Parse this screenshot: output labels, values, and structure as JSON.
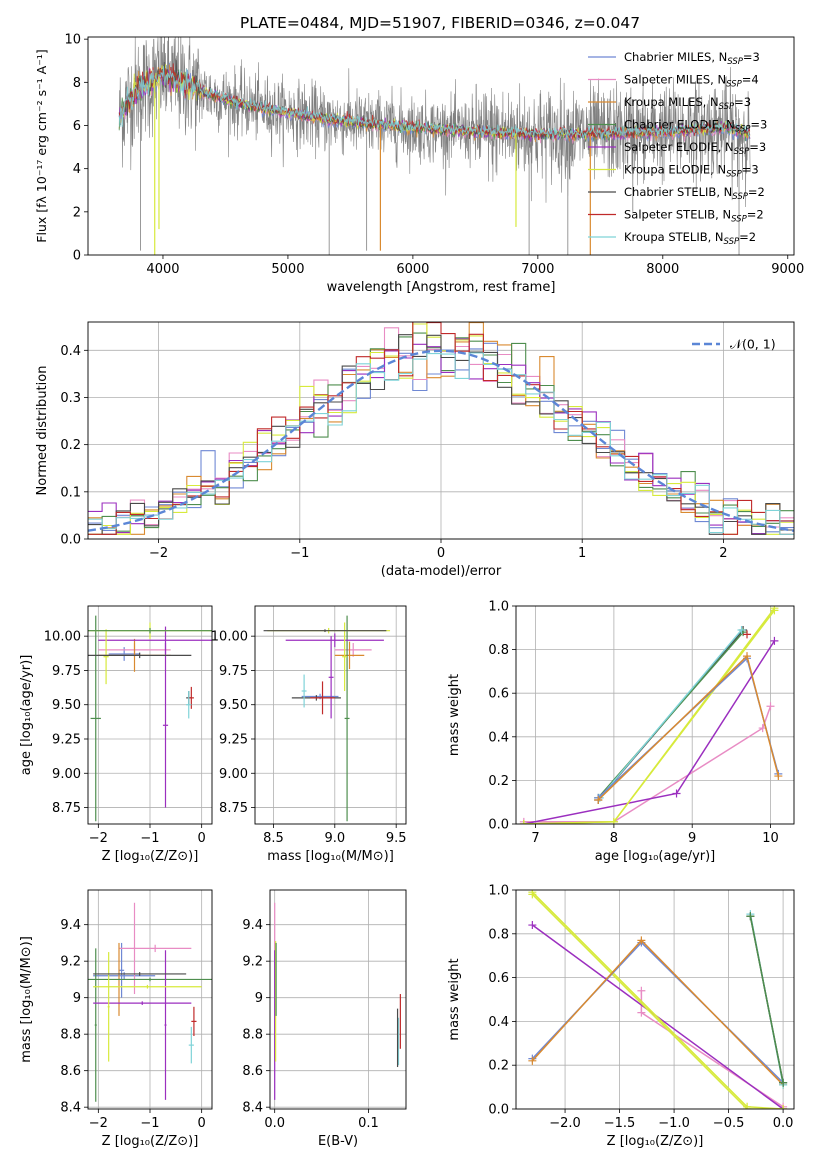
{
  "figure": {
    "title": "PLATE=0484, MJD=51907, FIBERID=0346, z=0.047"
  },
  "colors": {
    "Chabrier MILES": "#6f88d4",
    "Salpeter MILES": "#e88cc4",
    "Kroupa MILES": "#d98a30",
    "Chabrier ELODIE": "#4e8e4e",
    "Salpeter ELODIE": "#9b2fbf",
    "Kroupa ELODIE": "#d7ea3c",
    "Chabrier STELIB": "#4a4a4a",
    "Salpeter STELIB": "#c02a2a",
    "Kroupa STELIB": "#7fd3d8",
    "data": "#808080",
    "normal": "#5b86d6",
    "grid": "#b0b0b0"
  },
  "chart_data": [
    {
      "id": "spectrum",
      "type": "line",
      "xlabel": "wavelength [Angstrom, rest frame]",
      "ylabel": "Flux [fλ 10⁻¹⁷ erg cm⁻² s⁻¹ A⁻¹]",
      "xlim": [
        3400,
        9050
      ],
      "ylim": [
        0,
        10.1
      ],
      "xticks": [
        4000,
        5000,
        6000,
        7000,
        8000,
        9000
      ],
      "yticks": [
        0,
        2,
        4,
        6,
        8,
        10
      ],
      "grid": false,
      "legend_position": "top-right",
      "legend": [
        {
          "series": "Chabrier MILES",
          "label": "Chabrier MILES, N",
          "sub": "SSP",
          "eq": "=3"
        },
        {
          "series": "Salpeter MILES",
          "label": "Salpeter MILES, N",
          "sub": "SSP",
          "eq": "=4"
        },
        {
          "series": "Kroupa MILES",
          "label": "Kroupa MILES, N",
          "sub": "SSP",
          "eq": "=3"
        },
        {
          "series": "Chabrier ELODIE",
          "label": "Chabrier ELODIE, N",
          "sub": "SSP",
          "eq": "=3"
        },
        {
          "series": "Salpeter ELODIE",
          "label": "Salpeter ELODIE, N",
          "sub": "SSP",
          "eq": "=3"
        },
        {
          "series": "Kroupa ELODIE",
          "label": "Kroupa ELODIE, N",
          "sub": "SSP",
          "eq": "=3"
        },
        {
          "series": "Chabrier STELIB",
          "label": "Chabrier STELIB, N",
          "sub": "SSP",
          "eq": "=2"
        },
        {
          "series": "Salpeter STELIB",
          "label": "Salpeter STELIB, N",
          "sub": "SSP",
          "eq": "=2"
        },
        {
          "series": "Kroupa STELIB",
          "label": "Kroupa STELIB, N",
          "sub": "SSP",
          "eq": "=2"
        }
      ],
      "model_continuum": {
        "x": [
          3650,
          3700,
          3800,
          3900,
          4000,
          4100,
          4200,
          4300,
          4400,
          4500,
          4700,
          5000,
          5300,
          5600,
          6000,
          6500,
          7000,
          7500,
          8000,
          8500,
          8700
        ],
        "y": [
          6.4,
          6.9,
          7.7,
          8.0,
          8.4,
          8.1,
          7.9,
          7.6,
          7.4,
          7.2,
          6.9,
          6.6,
          6.3,
          6.1,
          5.9,
          5.7,
          5.6,
          5.6,
          5.7,
          5.9,
          5.6
        ]
      },
      "data_noise_scale": 1.2,
      "absorption_dips": [
        {
          "x": 3934,
          "y": 0.0,
          "series": "Kroupa ELODIE"
        },
        {
          "x": 3968,
          "y": 1.2,
          "series": "Kroupa ELODIE"
        },
        {
          "x": 5740,
          "y": 0.2,
          "series": "Kroupa MILES"
        },
        {
          "x": 6825,
          "y": 1.3,
          "series": "Kroupa ELODIE"
        },
        {
          "x": 7420,
          "y": 0.0,
          "series": "Kroupa MILES"
        }
      ],
      "data_spikes": [
        {
          "x": 3820,
          "y": 0.2
        },
        {
          "x": 5330,
          "y": 0.0
        },
        {
          "x": 5630,
          "y": 0.2
        },
        {
          "x": 6930,
          "y": 0.0
        },
        {
          "x": 7240,
          "y": 0.0
        },
        {
          "x": 7760,
          "y": 2.0
        },
        {
          "x": 8610,
          "y": 0.0
        }
      ]
    },
    {
      "id": "residuals",
      "type": "histogram",
      "xlabel": "(data-model)/error",
      "ylabel": "Normed distribution",
      "xlim": [
        -2.5,
        2.5
      ],
      "ylim": [
        0,
        0.46
      ],
      "xticks": [
        -2,
        -1,
        0,
        1,
        2
      ],
      "xticklabels": [
        "−2",
        "−1",
        "0",
        "1",
        "2"
      ],
      "yticks": [
        0.0,
        0.1,
        0.2,
        0.3,
        0.4
      ],
      "grid": true,
      "legend_position": "top-right",
      "legend": [
        {
          "series": "normal",
          "label": "𝒩(0, 1)"
        }
      ],
      "bin_width": 0.1,
      "noise_amplitude": 0.035
    },
    {
      "id": "age_vs_Z",
      "type": "errorbar",
      "xlabel": "Z [log₁₀(Z/Z⊙)]",
      "ylabel": "age  [log₁₀(age/yr)]",
      "xlim": [
        -2.2,
        0.2
      ],
      "ylim": [
        8.63,
        10.22
      ],
      "xticks": [
        -2,
        -1,
        0
      ],
      "xticklabels": [
        "−2",
        "−1",
        "0"
      ],
      "yticks": [
        8.75,
        9.0,
        9.25,
        9.5,
        9.75,
        10.0
      ],
      "yticklabels": [
        "8.75",
        "9.00",
        "9.25",
        "9.50",
        "9.75",
        "10.00"
      ],
      "grid": true,
      "points": [
        {
          "series": "Chabrier MILES",
          "x": -1.5,
          "xerr": 0.3,
          "y": 9.87,
          "yerr": 0.05
        },
        {
          "series": "Salpeter MILES",
          "x": -1.3,
          "xerr": 0.7,
          "y": 9.9,
          "yerr": 0.05
        },
        {
          "series": "Kroupa MILES",
          "x": -1.3,
          "xerr": 0.7,
          "y": 9.86,
          "yerr": 0.12
        },
        {
          "series": "Chabrier ELODIE",
          "x": -2.05,
          "xerr": 0.1,
          "y": 9.4,
          "yerr": 0.75
        },
        {
          "series": "Salpeter ELODIE",
          "x": -0.7,
          "xerr": 1.3,
          "y": 9.97,
          "yerr": 0.1
        },
        {
          "series": "Salpeter ELODIE",
          "x": -0.7,
          "xerr": 0.05,
          "y": 9.35,
          "yerr": 0.6
        },
        {
          "series": "Kroupa ELODIE",
          "x": -1.0,
          "xerr": 1.2,
          "y": 10.04,
          "yerr": 0.06
        },
        {
          "series": "Kroupa ELODIE",
          "x": -1.85,
          "xerr": 0.05,
          "y": 9.85,
          "yerr": 0.2
        },
        {
          "series": "Chabrier STELIB",
          "x": -1.2,
          "xerr": 1.0,
          "y": 9.86,
          "yerr": 0.02
        },
        {
          "series": "Chabrier STELIB",
          "x": -0.25,
          "xerr": 0.05,
          "y": 9.55,
          "yerr": 0.05
        },
        {
          "series": "Salpeter STELIB",
          "x": -0.2,
          "xerr": 0.05,
          "y": 9.55,
          "yerr": 0.08
        },
        {
          "series": "Kroupa STELIB",
          "x": -0.25,
          "xerr": 0.05,
          "y": 9.5,
          "yerr": 0.1
        },
        {
          "series": "Chabrier ELODIE",
          "x": -1.0,
          "xerr": 1.2,
          "y": 10.04,
          "yerr": 0.02
        }
      ]
    },
    {
      "id": "age_vs_mass",
      "type": "errorbar",
      "xlabel": "mass [log₁₀(M/M⊙)]",
      "ylabel": "",
      "xlim": [
        8.35,
        9.58
      ],
      "ylim": [
        8.63,
        10.22
      ],
      "xticks": [
        8.5,
        9.0,
        9.5
      ],
      "xticklabels": [
        "8.5",
        "9.0",
        "9.5"
      ],
      "yticks": [
        8.75,
        9.0,
        9.25,
        9.5,
        9.75,
        10.0
      ],
      "yticklabels": [
        "8.75",
        "9.00",
        "9.25",
        "9.50",
        "9.75",
        "10.00"
      ],
      "grid": true,
      "points": [
        {
          "series": "Chabrier MILES",
          "x": 8.88,
          "xerr": 0.15,
          "y": 9.56,
          "yerr": 0.02
        },
        {
          "series": "Salpeter MILES",
          "x": 9.15,
          "xerr": 0.15,
          "y": 9.9,
          "yerr": 0.05
        },
        {
          "series": "Kroupa MILES",
          "x": 9.12,
          "xerr": 0.12,
          "y": 9.86,
          "yerr": 0.1
        },
        {
          "series": "Chabrier ELODIE",
          "x": 9.1,
          "xerr": 0.02,
          "y": 9.4,
          "yerr": 0.75
        },
        {
          "series": "Salpeter ELODIE",
          "x": 9.0,
          "xerr": 0.4,
          "y": 9.97,
          "yerr": 0.05
        },
        {
          "series": "Salpeter ELODIE",
          "x": 8.97,
          "xerr": 0.02,
          "y": 9.7,
          "yerr": 0.3
        },
        {
          "series": "Kroupa ELODIE",
          "x": 8.95,
          "xerr": 0.5,
          "y": 10.04,
          "yerr": 0.02
        },
        {
          "series": "Kroupa ELODIE",
          "x": 9.08,
          "xerr": 0.02,
          "y": 9.85,
          "yerr": 0.25
        },
        {
          "series": "Chabrier STELIB",
          "x": 8.85,
          "xerr": 0.2,
          "y": 9.55,
          "yerr": 0.02
        },
        {
          "series": "Salpeter STELIB",
          "x": 8.9,
          "xerr": 0.1,
          "y": 9.55,
          "yerr": 0.12
        },
        {
          "series": "Kroupa STELIB",
          "x": 8.75,
          "xerr": 0.02,
          "y": 9.6,
          "yerr": 0.12
        },
        {
          "series": "Chabrier STELIB",
          "x": 8.92,
          "xerr": 0.5,
          "y": 10.04,
          "yerr": 0.01
        }
      ]
    },
    {
      "id": "weight_vs_age",
      "type": "line",
      "xlabel": "age  [log₁₀(age/yr)]",
      "ylabel": "mass weight",
      "xlim": [
        6.75,
        10.3
      ],
      "ylim": [
        0.0,
        1.0
      ],
      "xticks": [
        7,
        8,
        9,
        10
      ],
      "yticks": [
        0.0,
        0.2,
        0.4,
        0.6,
        0.8,
        1.0
      ],
      "yticklabels": [
        "0.0",
        "0.2",
        "0.4",
        "0.6",
        "0.8",
        "1.0"
      ],
      "grid": true,
      "series": [
        {
          "name": "Salpeter MILES",
          "x": [
            6.85,
            8.0,
            9.9,
            10.0
          ],
          "y": [
            0.01,
            0.01,
            0.44,
            0.54
          ]
        },
        {
          "name": "Salpeter ELODIE",
          "x": [
            6.85,
            8.8,
            10.05
          ],
          "y": [
            0.0,
            0.14,
            0.84
          ]
        },
        {
          "name": "Kroupa ELODIE",
          "x": [
            6.85,
            8.0,
            10.05
          ],
          "y": [
            0.0,
            0.01,
            0.99
          ]
        },
        {
          "name": "Kroupa ELODIE",
          "x": [
            6.85,
            8.0,
            10.05
          ],
          "y": [
            0.0,
            0.01,
            0.98
          ]
        },
        {
          "name": "Chabrier STELIB",
          "x": [
            7.8,
            9.65
          ],
          "y": [
            0.11,
            0.89
          ]
        },
        {
          "name": "Chabrier ELODIE",
          "x": [
            7.8,
            9.65
          ],
          "y": [
            0.12,
            0.88
          ]
        },
        {
          "name": "Kroupa STELIB",
          "x": [
            7.82,
            9.63
          ],
          "y": [
            0.12,
            0.89
          ]
        },
        {
          "name": "Chabrier MILES",
          "x": [
            7.8,
            9.7,
            10.1
          ],
          "y": [
            0.12,
            0.76,
            0.23
          ]
        },
        {
          "name": "Kroupa MILES",
          "x": [
            7.8,
            9.7,
            10.1
          ],
          "y": [
            0.11,
            0.77,
            0.22
          ]
        },
        {
          "name": "Salpeter STELIB",
          "x": [
            9.7
          ],
          "y": [
            0.87
          ]
        }
      ]
    },
    {
      "id": "mass_vs_Z",
      "type": "errorbar",
      "xlabel": "Z [log₁₀(Z/Z⊙)]",
      "ylabel": "mass [log₁₀(M/M⊙)]",
      "xlim": [
        -2.2,
        0.2
      ],
      "ylim": [
        8.39,
        9.59
      ],
      "xticks": [
        -2,
        -1,
        0
      ],
      "xticklabels": [
        "−2",
        "−1",
        "0"
      ],
      "yticks": [
        8.4,
        8.6,
        8.8,
        9.0,
        9.2,
        9.4
      ],
      "grid": true,
      "points": [
        {
          "series": "Chabrier MILES",
          "x": -1.5,
          "xerr": 0.6,
          "y": 9.12,
          "yerr": 0.02
        },
        {
          "series": "Chabrier MILES",
          "x": -1.55,
          "xerr": 0.05,
          "y": 9.15,
          "yerr": 0.15
        },
        {
          "series": "Salpeter MILES",
          "x": -0.9,
          "xerr": 0.7,
          "y": 9.27,
          "yerr": 0.02
        },
        {
          "series": "Salpeter MILES",
          "x": -1.3,
          "xerr": 0.02,
          "y": 9.27,
          "yerr": 0.25
        },
        {
          "series": "Kroupa MILES",
          "x": -1.6,
          "xerr": 0.02,
          "y": 9.1,
          "yerr": 0.2
        },
        {
          "series": "Chabrier ELODIE",
          "x": -1.0,
          "xerr": 1.2,
          "y": 9.1,
          "yerr": 0.01
        },
        {
          "series": "Chabrier ELODIE",
          "x": -2.05,
          "xerr": 0.02,
          "y": 8.85,
          "yerr": 0.42
        },
        {
          "series": "Salpeter ELODIE",
          "x": -1.15,
          "xerr": 0.95,
          "y": 8.97,
          "yerr": 0.01
        },
        {
          "series": "Salpeter ELODIE",
          "x": -0.7,
          "xerr": 0.02,
          "y": 8.85,
          "yerr": 0.41
        },
        {
          "series": "Kroupa ELODIE",
          "x": -1.05,
          "xerr": 1.05,
          "y": 9.06,
          "yerr": 0.01
        },
        {
          "series": "Kroupa ELODIE",
          "x": -1.8,
          "xerr": 0.02,
          "y": 8.95,
          "yerr": 0.3
        },
        {
          "series": "Chabrier STELIB",
          "x": -1.2,
          "xerr": 0.9,
          "y": 9.13,
          "yerr": 0.01
        },
        {
          "series": "Salpeter STELIB",
          "x": -0.15,
          "xerr": 0.05,
          "y": 8.87,
          "yerr": 0.08
        },
        {
          "series": "Kroupa STELIB",
          "x": -0.2,
          "xerr": 0.05,
          "y": 8.74,
          "yerr": 0.1
        }
      ]
    },
    {
      "id": "mass_vs_EBV",
      "type": "errorbar",
      "xlabel": "E(B-V)",
      "ylabel": "",
      "xlim": [
        -0.005,
        0.14
      ],
      "ylim": [
        8.39,
        9.59
      ],
      "xticks": [
        0.0,
        0.1
      ],
      "xticklabels": [
        "0.0",
        "0.1"
      ],
      "yticks": [
        8.4,
        8.6,
        8.8,
        9.0,
        9.2,
        9.4
      ],
      "grid": true,
      "points": [
        {
          "series": "Salpeter MILES",
          "x": 0.0,
          "xerr": 0.0,
          "y": 9.27,
          "yerr": 0.25
        },
        {
          "series": "Salpeter ELODIE",
          "x": 0.0,
          "xerr": 0.0,
          "y": 8.85,
          "yerr": 0.41
        },
        {
          "series": "Kroupa ELODIE",
          "x": 0.001,
          "xerr": 0.0,
          "y": 8.98,
          "yerr": 0.33
        },
        {
          "series": "Chabrier ELODIE",
          "x": 0.0015,
          "xerr": 0.0,
          "y": 9.1,
          "yerr": 0.2
        },
        {
          "series": "Salpeter STELIB",
          "x": 0.134,
          "xerr": 0.0,
          "y": 8.87,
          "yerr": 0.15
        },
        {
          "series": "Kroupa STELIB",
          "x": 0.132,
          "xerr": 0.0,
          "y": 8.76,
          "yerr": 0.13
        },
        {
          "series": "Chabrier STELIB",
          "x": 0.131,
          "xerr": 0.0,
          "y": 8.78,
          "yerr": 0.16
        }
      ]
    },
    {
      "id": "weight_vs_Z",
      "type": "line",
      "xlabel": "Z [log₁₀(Z/Z⊙)]",
      "ylabel": "mass weight",
      "xlim": [
        -2.45,
        0.1
      ],
      "ylim": [
        0.0,
        1.0
      ],
      "xticks": [
        -2.0,
        -1.5,
        -1.0,
        -0.5,
        0.0
      ],
      "xticklabels": [
        "−2.0",
        "−1.5",
        "−1.0",
        "−0.5",
        "0.0"
      ],
      "yticks": [
        0.0,
        0.2,
        0.4,
        0.6,
        0.8,
        1.0
      ],
      "yticklabels": [
        "0.0",
        "0.2",
        "0.4",
        "0.6",
        "0.8",
        "1.0"
      ],
      "grid": true,
      "series": [
        {
          "name": "Salpeter MILES",
          "x": [
            -1.3,
            -1.3,
            0.0
          ],
          "y": [
            0.54,
            0.44,
            0.01
          ]
        },
        {
          "name": "Salpeter ELODIE",
          "x": [
            -2.3,
            0.0
          ],
          "y": [
            0.84,
            0.0
          ]
        },
        {
          "name": "Kroupa ELODIE",
          "x": [
            -2.3,
            -0.33,
            0.0
          ],
          "y": [
            0.99,
            0.01,
            0.0
          ]
        },
        {
          "name": "Kroupa ELODIE",
          "x": [
            -2.3,
            -0.33,
            0.0
          ],
          "y": [
            0.98,
            0.0,
            0.0
          ]
        },
        {
          "name": "Chabrier MILES",
          "x": [
            -2.3,
            -1.3,
            0.0
          ],
          "y": [
            0.23,
            0.76,
            0.12
          ]
        },
        {
          "name": "Kroupa MILES",
          "x": [
            -2.3,
            -1.3,
            0.0
          ],
          "y": [
            0.22,
            0.77,
            0.11
          ]
        },
        {
          "name": "Kroupa STELIB",
          "x": [
            -0.3,
            0.0
          ],
          "y": [
            0.89,
            0.11
          ]
        },
        {
          "name": "Chabrier STELIB",
          "x": [
            -0.3,
            0.0
          ],
          "y": [
            0.88,
            0.12
          ]
        },
        {
          "name": "Chabrier ELODIE",
          "x": [
            -0.3,
            0.0
          ],
          "y": [
            0.88,
            0.12
          ]
        }
      ]
    }
  ]
}
